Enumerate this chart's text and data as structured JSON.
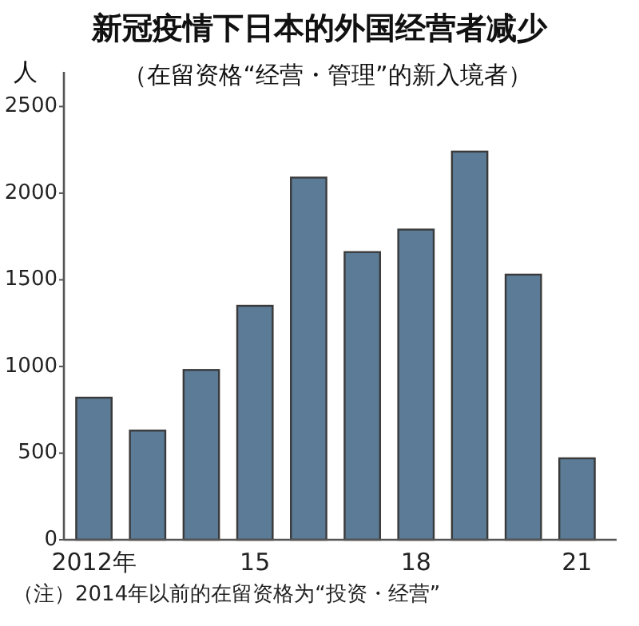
{
  "chart_data": {
    "type": "bar",
    "title": "新冠疫情下日本的外国经营者减少",
    "subtitle": "（在留资格“经营・管理”的新入境者）",
    "ylabel": "人",
    "categories": [
      "2012年",
      null,
      null,
      "15",
      null,
      null,
      "18",
      null,
      null,
      "21"
    ],
    "values": [
      820,
      630,
      980,
      1350,
      2090,
      1660,
      1790,
      2240,
      1530,
      470
    ],
    "color": "#5b7b97",
    "ylim": [
      0,
      2700
    ],
    "yticks": [
      0,
      500,
      1000,
      1500,
      2000,
      2500
    ],
    "grid": false,
    "annotations": [
      "（注）2014年以前的在留资格为“投资・经营”"
    ]
  }
}
